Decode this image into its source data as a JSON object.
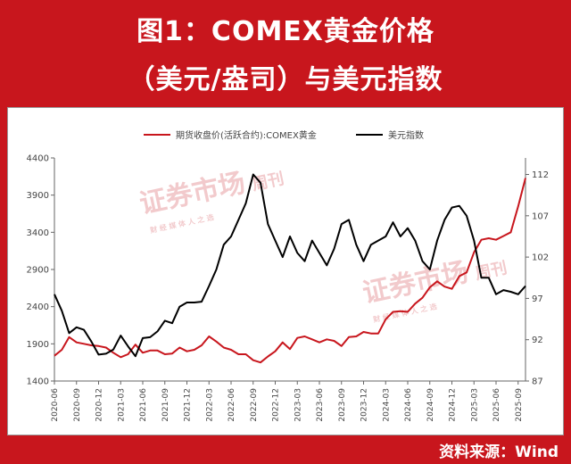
{
  "header": {
    "title_line1": "图1：COMEX黄金价格",
    "title_line2": "（美元/盎司）与美元指数"
  },
  "footer": {
    "source": "资料来源：Wind"
  },
  "watermark": {
    "text": "证券市场",
    "suffix": "周刊",
    "sub": "财 经 媒 体 人 之 选"
  },
  "chart_data": {
    "type": "line",
    "legend_position": "top-center",
    "grid": false,
    "x_axis": {
      "ticks": [
        "2020-06",
        "2020-09",
        "2020-12",
        "2021-03",
        "2021-06",
        "2021-09",
        "2021-12",
        "2022-03",
        "2022-06",
        "2022-09",
        "2022-12",
        "2023-03",
        "2023-06",
        "2023-09",
        "2023-12",
        "2024-03",
        "2024-06",
        "2024-09",
        "2024-12",
        "2025-03",
        "2025-06",
        "2025-09"
      ],
      "range": [
        "2020-06",
        "2025-10"
      ]
    },
    "y_left": {
      "ticks": [
        1400,
        1900,
        2400,
        2900,
        3400,
        3900,
        4400
      ],
      "range": [
        1400,
        4400
      ]
    },
    "y_right": {
      "ticks": [
        87,
        92,
        97,
        102,
        107,
        112
      ],
      "range": [
        87,
        114
      ]
    },
    "series": [
      {
        "name": "期货收盘价(活跃合约):COMEX黄金",
        "axis": "left",
        "color": "#c8161d",
        "x": [
          "2020-06",
          "2020-07",
          "2020-08",
          "2020-09",
          "2020-10",
          "2020-11",
          "2020-12",
          "2021-01",
          "2021-02",
          "2021-03",
          "2021-04",
          "2021-05",
          "2021-06",
          "2021-07",
          "2021-08",
          "2021-09",
          "2021-10",
          "2021-11",
          "2021-12",
          "2022-01",
          "2022-02",
          "2022-03",
          "2022-04",
          "2022-05",
          "2022-06",
          "2022-07",
          "2022-08",
          "2022-09",
          "2022-10",
          "2022-11",
          "2022-12",
          "2023-01",
          "2023-02",
          "2023-03",
          "2023-04",
          "2023-05",
          "2023-06",
          "2023-07",
          "2023-08",
          "2023-09",
          "2023-10",
          "2023-11",
          "2023-12",
          "2024-01",
          "2024-02",
          "2024-03",
          "2024-04",
          "2024-05",
          "2024-06",
          "2024-07",
          "2024-08",
          "2024-09",
          "2024-10",
          "2024-11",
          "2024-12",
          "2025-01",
          "2025-02",
          "2025-03",
          "2025-04",
          "2025-05",
          "2025-06",
          "2025-07",
          "2025-08",
          "2025-09",
          "2025-10"
        ],
        "values": [
          1740,
          1820,
          1990,
          1920,
          1900,
          1880,
          1870,
          1850,
          1780,
          1720,
          1760,
          1890,
          1780,
          1810,
          1810,
          1760,
          1770,
          1850,
          1800,
          1820,
          1880,
          2000,
          1930,
          1850,
          1820,
          1760,
          1760,
          1680,
          1650,
          1730,
          1800,
          1920,
          1830,
          1980,
          2000,
          1960,
          1920,
          1960,
          1940,
          1870,
          1990,
          2000,
          2060,
          2040,
          2040,
          2230,
          2330,
          2340,
          2330,
          2440,
          2520,
          2660,
          2740,
          2670,
          2640,
          2810,
          2860,
          3130,
          3300,
          3320,
          3300,
          3350,
          3400,
          3750,
          4130
        ]
      },
      {
        "name": "美元指数",
        "axis": "right",
        "color": "#000000",
        "x": [
          "2020-06",
          "2020-07",
          "2020-08",
          "2020-09",
          "2020-10",
          "2020-11",
          "2020-12",
          "2021-01",
          "2021-02",
          "2021-03",
          "2021-04",
          "2021-05",
          "2021-06",
          "2021-07",
          "2021-08",
          "2021-09",
          "2021-10",
          "2021-11",
          "2021-12",
          "2022-01",
          "2022-02",
          "2022-03",
          "2022-04",
          "2022-05",
          "2022-06",
          "2022-07",
          "2022-08",
          "2022-09",
          "2022-10",
          "2022-11",
          "2022-12",
          "2023-01",
          "2023-02",
          "2023-03",
          "2023-04",
          "2023-05",
          "2023-06",
          "2023-07",
          "2023-08",
          "2023-09",
          "2023-10",
          "2023-11",
          "2023-12",
          "2024-01",
          "2024-02",
          "2024-03",
          "2024-04",
          "2024-05",
          "2024-06",
          "2024-07",
          "2024-08",
          "2024-09",
          "2024-10",
          "2024-11",
          "2024-12",
          "2025-01",
          "2025-02",
          "2025-03",
          "2025-04",
          "2025-05",
          "2025-06",
          "2025-07",
          "2025-08",
          "2025-09",
          "2025-10"
        ],
        "values": [
          97.5,
          95.5,
          92.8,
          93.5,
          93.2,
          91.8,
          90.2,
          90.3,
          90.8,
          92.5,
          91.2,
          90.0,
          92.2,
          92.3,
          93.0,
          94.3,
          94.0,
          96.0,
          96.5,
          96.5,
          96.6,
          98.5,
          100.5,
          103.5,
          104.5,
          106.5,
          108.5,
          112.0,
          111.0,
          106.0,
          104.0,
          102.0,
          104.5,
          102.5,
          101.5,
          104.0,
          102.5,
          101.0,
          103.0,
          106.0,
          106.5,
          103.5,
          101.5,
          103.5,
          104.0,
          104.5,
          106.2,
          104.5,
          105.5,
          104.0,
          101.5,
          100.5,
          104.0,
          106.5,
          108.0,
          108.2,
          107.0,
          104.0,
          99.5,
          99.5,
          97.5,
          98.0,
          97.8,
          97.5,
          98.5
        ]
      }
    ]
  }
}
